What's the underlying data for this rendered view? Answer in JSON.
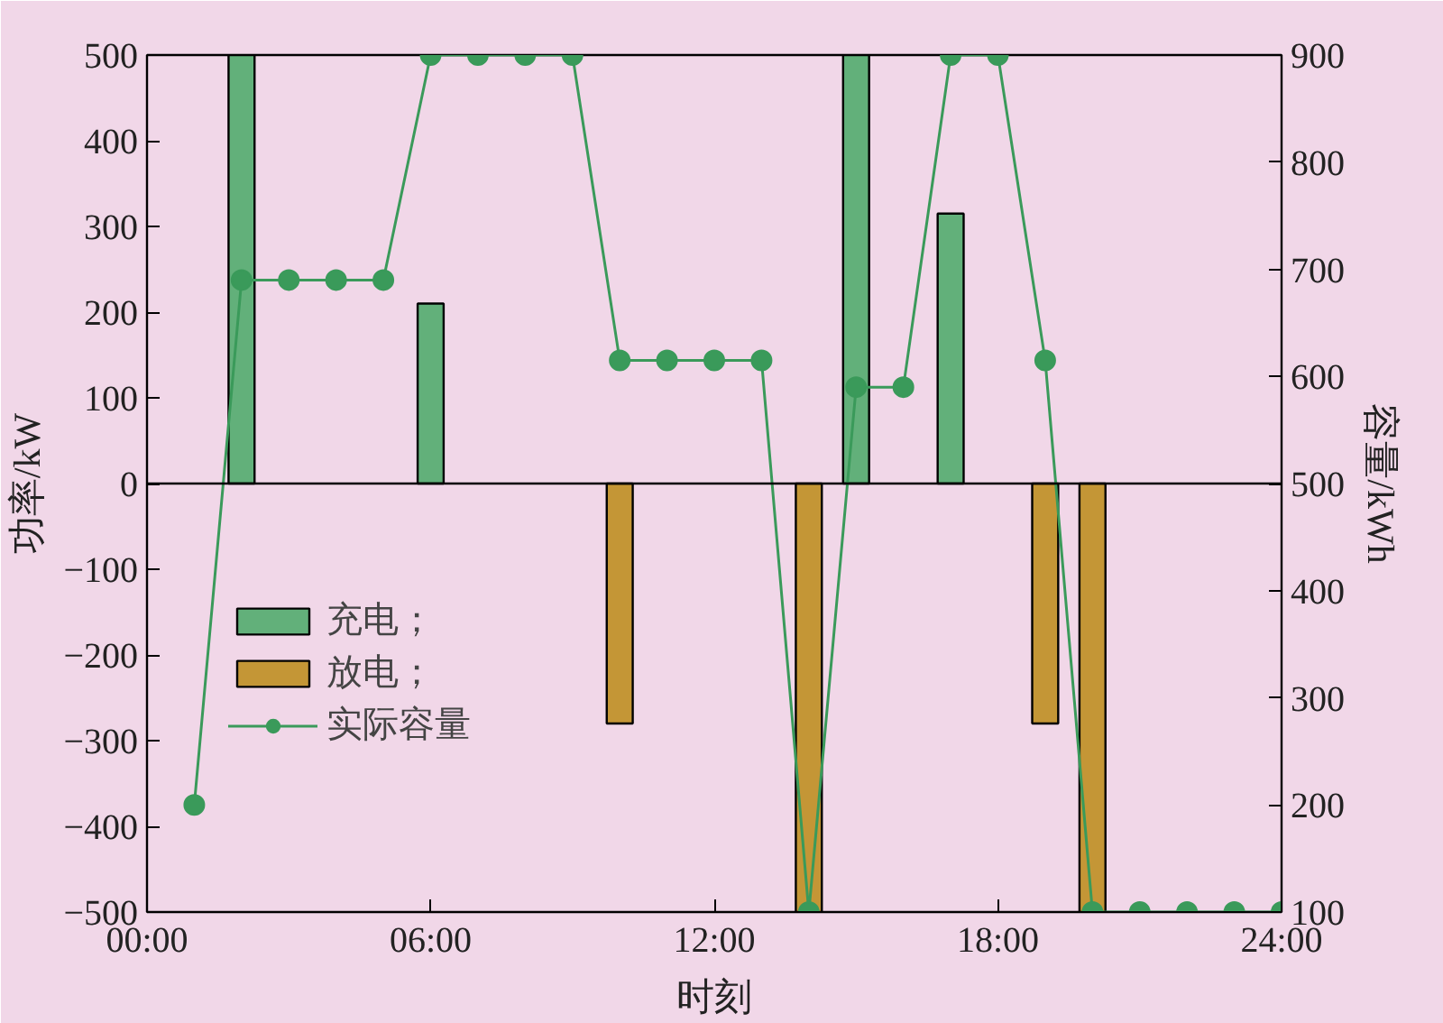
{
  "chart_data": {
    "type": "bar",
    "xlabel": "时刻",
    "ylabel": "功率/kW",
    "y2label": "容量/kWh",
    "xlim": [
      0,
      24
    ],
    "xticks": [
      {
        "value": 0,
        "label": "00:00"
      },
      {
        "value": 6,
        "label": "06:00"
      },
      {
        "value": 12,
        "label": "12:00"
      },
      {
        "value": 18,
        "label": "18:00"
      },
      {
        "value": 24,
        "label": "24:00"
      }
    ],
    "ylim": [
      -500,
      500
    ],
    "yticks": [
      -500,
      -400,
      -300,
      -200,
      -100,
      0,
      100,
      200,
      300,
      400,
      500
    ],
    "y2lim": [
      100,
      900
    ],
    "y2ticks": [
      100,
      200,
      300,
      400,
      500,
      600,
      700,
      800,
      900
    ],
    "series": [
      {
        "name": "充电；",
        "color": "#62b07a",
        "x": [
          2,
          6,
          15,
          17
        ],
        "values": [
          500,
          210,
          500,
          315
        ]
      },
      {
        "name": "放电；",
        "color": "#c49636",
        "x": [
          10,
          14,
          19,
          20
        ],
        "values": [
          -280,
          -500,
          -280,
          -500
        ]
      },
      {
        "name": "实际容量",
        "type": "line",
        "axis": "y2",
        "color": "#3a9a5a",
        "marker": "circle",
        "x": [
          1,
          2,
          3,
          4,
          5,
          6,
          7,
          8,
          9,
          10,
          11,
          12,
          13,
          14,
          15,
          16,
          17,
          18,
          19,
          20,
          21,
          22,
          23,
          24
        ],
        "values": [
          200,
          690,
          690,
          690,
          690,
          900,
          900,
          900,
          900,
          615,
          615,
          615,
          615,
          100,
          590,
          590,
          900,
          900,
          615,
          100,
          100,
          100,
          100,
          100
        ]
      }
    ],
    "ref_lines": [
      {
        "axis": "y",
        "value": 0,
        "color": "#000000"
      }
    ],
    "legend": "left",
    "grid": false
  }
}
